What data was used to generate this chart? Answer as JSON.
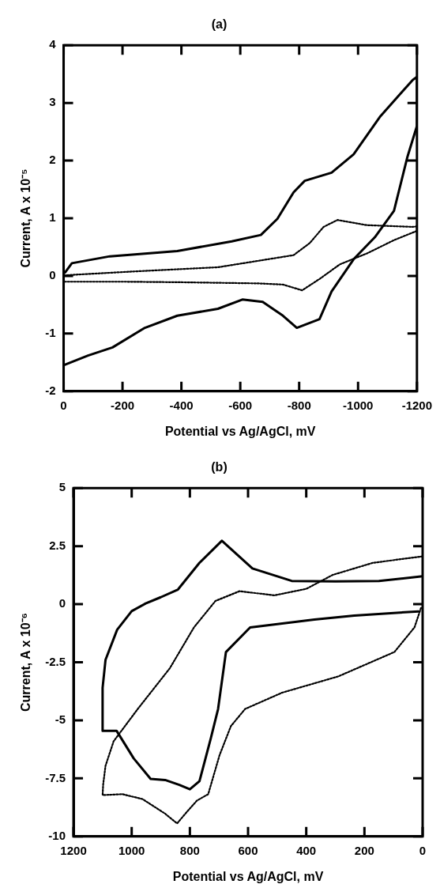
{
  "chart_data": [
    {
      "type": "line",
      "title": "(a)",
      "xlabel": "Potential vs Ag/AgCl, mV",
      "ylabel": "Current, A x 10⁻⁵",
      "xlim": [
        0,
        -1200
      ],
      "xticks": [
        0,
        -200,
        -400,
        -600,
        -800,
        -1000,
        -1200
      ],
      "ylim": [
        -2,
        4
      ],
      "yticks": [
        -2,
        -1,
        0,
        1,
        2,
        3,
        4
      ],
      "grid": false,
      "legend": false,
      "marker": "none",
      "series": [
        {
          "color": "#000000",
          "line_style": "solid",
          "x": [
            -5,
            -28,
            -157,
            -386,
            -571,
            -670,
            -726,
            -781,
            -819,
            -910,
            -985,
            -1076,
            -1186,
            -1200,
            -1200,
            -1168,
            -1122,
            -1057,
            -985,
            -910,
            -869,
            -792,
            -745,
            -676,
            -607,
            -524,
            -386,
            -276,
            -166,
            -83,
            0
          ],
          "values": [
            0.06,
            0.22,
            0.34,
            0.43,
            0.6,
            0.71,
            0.99,
            1.45,
            1.65,
            1.79,
            2.11,
            2.77,
            3.4,
            3.45,
            2.6,
            2.07,
            1.13,
            0.67,
            0.29,
            -0.27,
            -0.75,
            -0.9,
            -0.69,
            -0.45,
            -0.41,
            -0.57,
            -0.69,
            -0.9,
            -1.24,
            -1.38,
            -1.55
          ]
        },
        {
          "color": "#000000",
          "line_style": "dotted",
          "x": [
            0,
            -248,
            -524,
            -781,
            -836,
            -883,
            -930,
            -1030,
            -1186,
            -1200,
            -1200,
            -1122,
            -1030,
            -938,
            -870,
            -810,
            -745,
            -662,
            -400,
            -200,
            0
          ],
          "values": [
            0.01,
            0.08,
            0.15,
            0.36,
            0.57,
            0.85,
            0.97,
            0.88,
            0.85,
            0.86,
            0.78,
            0.62,
            0.39,
            0.2,
            -0.05,
            -0.25,
            -0.15,
            -0.13,
            -0.11,
            -0.1,
            -0.1
          ]
        }
      ]
    },
    {
      "type": "line",
      "title": "(b)",
      "xlabel": "Potential vs Ag/AgCl, mV",
      "ylabel": "Current, A x 10⁻⁶",
      "xlim": [
        1200,
        0
      ],
      "xticks": [
        1200,
        1000,
        800,
        600,
        400,
        200,
        0
      ],
      "ylim": [
        -10,
        5
      ],
      "yticks": [
        -10,
        -7.5,
        -5,
        -2.5,
        0,
        2.5,
        5
      ],
      "grid": false,
      "legend": false,
      "marker": "none",
      "series": [
        {
          "color": "#000000",
          "line_style": "solid",
          "x": [
            0,
            150,
            300,
            450,
            585,
            690,
            767,
            841,
            900,
            952,
            1000,
            1050,
            1090,
            1100,
            1100,
            1052,
            993,
            935,
            885,
            836,
            800,
            767,
            728,
            703,
            676,
            593,
            372,
            235,
            14
          ],
          "values": [
            1.2,
            1.0,
            0.98,
            1.0,
            1.54,
            2.73,
            1.78,
            0.63,
            0.3,
            0.03,
            -0.3,
            -1.1,
            -2.4,
            -3.6,
            -5.45,
            -5.45,
            -6.64,
            -7.52,
            -7.57,
            -7.78,
            -7.97,
            -7.62,
            -5.77,
            -4.51,
            -2.06,
            -1.0,
            -0.66,
            -0.49,
            -0.31
          ]
        },
        {
          "color": "#000000",
          "line_style": "dotted",
          "x": [
            0,
            171,
            309,
            400,
            510,
            629,
            712,
            786,
            869,
            979,
            1062,
            1090,
            1098,
            1100,
            1032,
            963,
            885,
            844,
            806,
            775,
            737,
            698,
            659,
            610,
            483,
            290,
            97,
            28,
            5
          ],
          "values": [
            2.06,
            1.78,
            1.26,
            0.66,
            0.38,
            0.56,
            0.14,
            -1.0,
            -2.76,
            -4.51,
            -5.9,
            -6.96,
            -7.76,
            -8.22,
            -8.18,
            -8.39,
            -9.02,
            -9.44,
            -8.88,
            -8.45,
            -8.18,
            -6.5,
            -5.25,
            -4.51,
            -3.81,
            -3.11,
            -2.06,
            -1.0,
            -0.14
          ]
        }
      ]
    }
  ]
}
